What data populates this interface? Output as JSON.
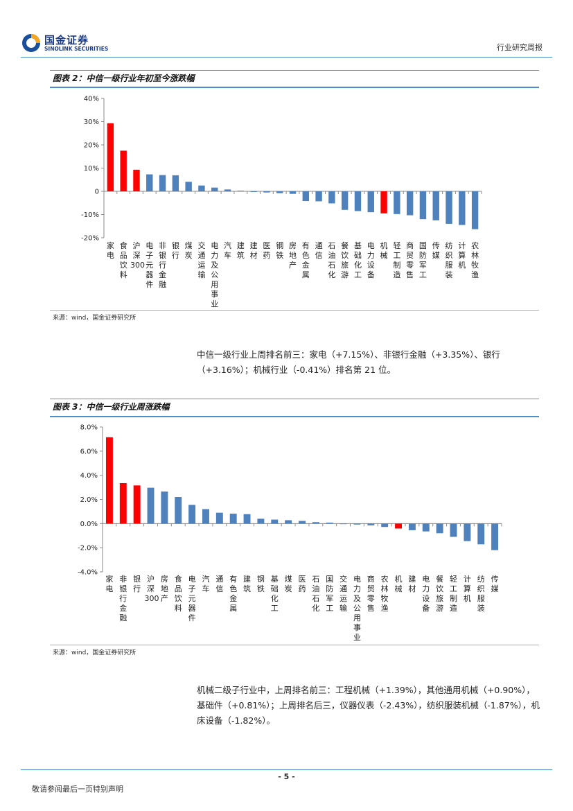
{
  "header": {
    "logo_cn": "国金证券",
    "logo_en": "SINOLINK SECURITIES",
    "report_type": "行业研究周报"
  },
  "figure2": {
    "title": "图表 2：中信一级行业年初至今涨跌幅",
    "source": "来源：wind，国金证券研究所"
  },
  "paragraph1": "中信一级行业上周排名前三：家电（+7.15%）、非银行金融（+3.35%）、银行（+3.16%）；机械行业（-0.41%）排名第 21 位。",
  "figure3": {
    "title": "图表 3：中信一级行业周涨跌幅",
    "source": "来源：wind，国金证券研究所"
  },
  "paragraph2": "机械二级子行业中，上周排名前三：工程机械（+1.39%），其他通用机械（+0.90%），基础件（+0.81%）；上周排名后三，仪器仪表（-2.43%），纺织服装机械（-1.87%），机床设备（-1.82%）。",
  "footer": {
    "page": "- 5 -",
    "note": "敬请参阅最后一页特别声明"
  },
  "colors": {
    "highlight": "#ff0000",
    "normal": "#4f81bd",
    "rule": "#4b8fcb"
  },
  "chart_data": [
    {
      "type": "bar",
      "ylim": [
        -20,
        40
      ],
      "yticks": [
        -20,
        -10,
        0,
        10,
        20,
        30,
        40
      ],
      "ytick_labels": [
        "-20%",
        "-10%",
        "0",
        "10%",
        "20%",
        "30%",
        "40%"
      ],
      "categories": [
        "家电",
        "食品饮料",
        "沪深300",
        "电子元器件",
        "非银行金融",
        "银行",
        "煤炭",
        "交通运输",
        "电力及公用事业",
        "汽车",
        "建筑",
        "建材",
        "医药",
        "钢铁",
        "房地产",
        "有色金属",
        "通信",
        "石油石化",
        "餐饮旅游",
        "基础化工",
        "电力设备",
        "机械",
        "轻工制造",
        "商贸零售",
        "国防军工",
        "传媒",
        "纺织服装",
        "计算机",
        "农林牧渔"
      ],
      "values": [
        29.3,
        17.5,
        9.3,
        7.3,
        7.0,
        6.9,
        4.1,
        2.5,
        1.6,
        0.8,
        0.3,
        -0.3,
        -0.5,
        -0.8,
        -1.1,
        -4.2,
        -4.3,
        -5.2,
        -8.0,
        -8.5,
        -9.0,
        -9.5,
        -9.8,
        -10.3,
        -12.0,
        -12.5,
        -14.0,
        -14.5,
        -16.3
      ],
      "highlight": [
        "家电",
        "食品饮料",
        "沪深300",
        "机械"
      ]
    },
    {
      "type": "bar",
      "ylim": [
        -4.0,
        8.0
      ],
      "yticks": [
        -4,
        -2,
        0,
        2,
        4,
        6,
        8
      ],
      "ytick_labels": [
        "-4.0%",
        "-2.0%",
        "0.0%",
        "2.0%",
        "4.0%",
        "6.0%",
        "8.0%"
      ],
      "categories": [
        "家电",
        "非银行金融",
        "银行",
        "沪深300",
        "房地产",
        "食品饮料",
        "电子元器件",
        "汽车",
        "通信",
        "有色金属",
        "建筑",
        "钢铁",
        "基础化工",
        "煤炭",
        "医药",
        "石油石化",
        "国防军工",
        "交通运输",
        "电力及公用事业",
        "商贸零售",
        "农林牧渔",
        "机械",
        "建材",
        "电力设备",
        "餐饮旅游",
        "轻工制造",
        "计算机",
        "纺织服装",
        "传媒"
      ],
      "values": [
        7.15,
        3.35,
        3.16,
        2.97,
        2.65,
        2.2,
        1.55,
        1.2,
        0.9,
        0.82,
        0.78,
        0.4,
        0.33,
        0.28,
        0.22,
        0.12,
        0.08,
        -0.05,
        -0.08,
        -0.15,
        -0.28,
        -0.41,
        -0.55,
        -0.65,
        -0.8,
        -1.1,
        -1.45,
        -1.72,
        -2.2
      ],
      "highlight": [
        "家电",
        "非银行金融",
        "银行",
        "机械"
      ]
    }
  ]
}
